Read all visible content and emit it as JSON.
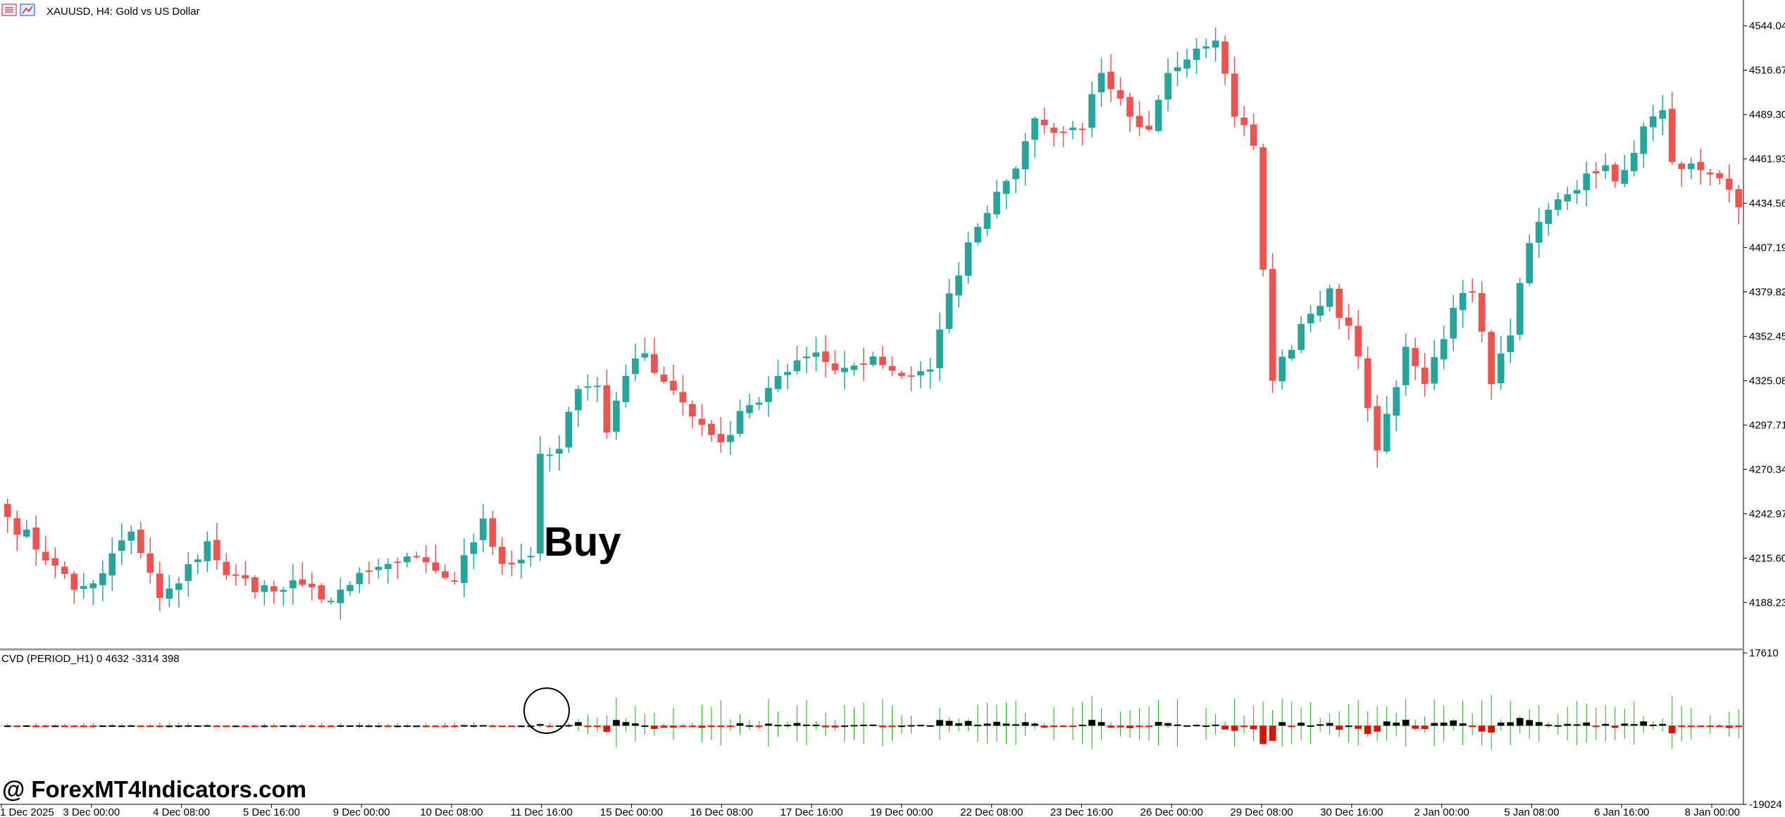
{
  "window": {
    "symbol_title": "XAUUSD, H4:  Gold vs US Dollar"
  },
  "indicator": {
    "label": "CVD (PERIOD_H1) 0 4632 -3314 398"
  },
  "annotation": {
    "buy_label": "Buy"
  },
  "watermark": {
    "text": "@ ForexMT4Indicators.com"
  },
  "colors": {
    "bull": "#26a69a",
    "bear": "#ef5350",
    "cvd_positive": "#000000",
    "cvd_negative": "#dd1100",
    "cvd_wick": "#22aa22",
    "separator": "#999999"
  },
  "chart_data": [
    {
      "type": "candlestick",
      "title": "XAUUSD, H4:  Gold vs US Dollar",
      "ylim": [
        4161,
        4560
      ],
      "y_ticks": [
        "4544.04",
        "4516.67",
        "4489.30",
        "4461.93",
        "4434.56",
        "4407.19",
        "4379.82",
        "4352.45",
        "4325.08",
        "4297.71",
        "4270.34",
        "4242.97",
        "4215.60",
        "4188.23"
      ],
      "x_ticks": [
        "1 Dec 2025",
        "3 Dec 00:00",
        "4 Dec 08:00",
        "5 Dec 16:00",
        "9 Dec 00:00",
        "10 Dec 08:00",
        "11 Dec 16:00",
        "15 Dec 00:00",
        "16 Dec 08:00",
        "17 Dec 16:00",
        "19 Dec 00:00",
        "22 Dec 08:00",
        "23 Dec 16:00",
        "26 Dec 00:00",
        "29 Dec 08:00",
        "30 Dec 16:00",
        "2 Jan 00:00",
        "5 Jan 08:00",
        "6 Jan 16:00",
        "8 Jan 00:00"
      ],
      "grid": false,
      "anchors": [
        [
          0,
          4241
        ],
        [
          5,
          4211
        ],
        [
          7,
          4196
        ],
        [
          9,
          4200
        ],
        [
          13,
          4232
        ],
        [
          16,
          4191
        ],
        [
          18,
          4200
        ],
        [
          21,
          4226
        ],
        [
          23,
          4205
        ],
        [
          28,
          4195
        ],
        [
          31,
          4199
        ],
        [
          33,
          4190
        ],
        [
          36,
          4199
        ],
        [
          40,
          4212
        ],
        [
          44,
          4213
        ],
        [
          47,
          4201
        ],
        [
          50,
          4240
        ],
        [
          52,
          4212
        ],
        [
          55,
          4217
        ],
        [
          56,
          4280
        ],
        [
          58,
          4283
        ],
        [
          60,
          4320
        ],
        [
          62,
          4322
        ],
        [
          63,
          4293
        ],
        [
          65,
          4328
        ],
        [
          67,
          4342
        ],
        [
          70,
          4319
        ],
        [
          72,
          4303
        ],
        [
          75,
          4287
        ],
        [
          78,
          4310
        ],
        [
          81,
          4328
        ],
        [
          84,
          4340
        ],
        [
          88,
          4333
        ],
        [
          91,
          4340
        ],
        [
          94,
          4328
        ],
        [
          97,
          4332
        ],
        [
          99,
          4379
        ],
        [
          102,
          4420
        ],
        [
          106,
          4456
        ],
        [
          108,
          4487
        ],
        [
          110,
          4478
        ],
        [
          113,
          4480
        ],
        [
          115,
          4515
        ],
        [
          118,
          4488
        ],
        [
          120,
          4480
        ],
        [
          122,
          4515
        ],
        [
          125,
          4530
        ],
        [
          127,
          4535
        ],
        [
          129,
          4488
        ],
        [
          131,
          4470
        ],
        [
          133,
          4325
        ],
        [
          136,
          4360
        ],
        [
          139,
          4382
        ],
        [
          142,
          4340
        ],
        [
          144,
          4282
        ],
        [
          147,
          4346
        ],
        [
          149,
          4323
        ],
        [
          152,
          4370
        ],
        [
          154,
          4380
        ],
        [
          156,
          4323
        ],
        [
          158,
          4353
        ],
        [
          160,
          4410
        ],
        [
          163,
          4437
        ],
        [
          166,
          4453
        ],
        [
          168,
          4458
        ],
        [
          169,
          4448
        ],
        [
          172,
          4482
        ],
        [
          174,
          4492
        ],
        [
          175,
          4460
        ],
        [
          178,
          4455
        ],
        [
          180,
          4450
        ],
        [
          182,
          4432
        ]
      ],
      "series_note": "Candle open/close values in price units are generated from anchors"
    },
    {
      "type": "bar",
      "title": "CVD (PERIOD_H1) 0 4632 -3314 398",
      "ylim": [
        -19024,
        17610
      ],
      "y_ticks": [
        "17610",
        "-19024"
      ],
      "grid": false
    }
  ]
}
